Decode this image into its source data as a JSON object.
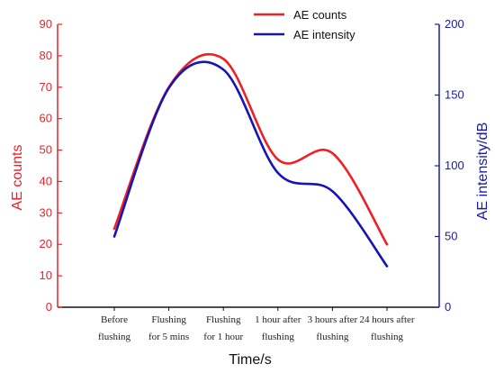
{
  "chart_data": {
    "type": "line",
    "categories": [
      [
        "Before",
        "flushing"
      ],
      [
        "Flushing",
        "for 5 mins"
      ],
      [
        "Flushing",
        "for 1 hour"
      ],
      [
        "1 hour after",
        "flushing"
      ],
      [
        "3 hours after",
        "flushing"
      ],
      [
        "24 hours after",
        "flushing"
      ]
    ],
    "series": [
      {
        "name": "AE counts",
        "axis": "left",
        "color": "#ee2024",
        "values": [
          25,
          70,
          79,
          47,
          49,
          20
        ]
      },
      {
        "name": "AE intensity",
        "axis": "right",
        "color": "#1515b5",
        "values": [
          50,
          155,
          168,
          95,
          82,
          29
        ]
      }
    ],
    "xlabel": "Time/s",
    "ylabel_left": "AE counts",
    "ylabel_right": "AE intensity/dB",
    "ylim_left": [
      0,
      90
    ],
    "yticks_left": [
      0,
      10,
      20,
      30,
      40,
      50,
      60,
      70,
      80,
      90
    ],
    "ylim_right": [
      0,
      200
    ],
    "yticks_right": [
      0,
      50,
      100,
      150,
      200
    ],
    "left_axis_color": "#e8232a",
    "right_axis_color": "#1a1aa6",
    "legend_position": "top-right",
    "grid": false
  }
}
